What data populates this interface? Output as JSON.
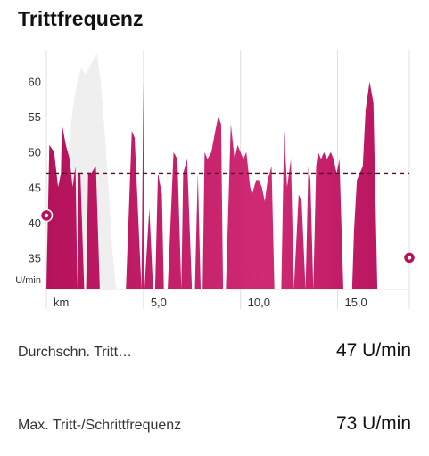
{
  "header": {
    "title": "Trittfrequenz"
  },
  "chart_data": {
    "type": "area",
    "ylabel": "U/min",
    "xlabel": "km",
    "yticks": [
      60,
      55,
      50,
      45,
      40,
      35
    ],
    "xticks": [
      {
        "value": 0,
        "label": "km"
      },
      {
        "value": 5,
        "label": "5,0"
      },
      {
        "value": 10,
        "label": "10,0"
      },
      {
        "value": 15,
        "label": "15,0"
      }
    ],
    "xlim": [
      0,
      18.7
    ],
    "ylim": [
      30.5,
      64.5
    ],
    "average": 47,
    "series": [
      {
        "x": [
          0,
          0.15,
          0.4,
          0.6,
          0.75,
          0.8,
          1.0,
          1.2,
          1.35,
          1.5,
          1.6,
          1.65,
          1.75,
          1.95,
          2.05,
          2.15,
          2.3,
          2.55,
          2.75,
          2.95,
          3.5,
          4.1,
          4.4,
          4.55,
          4.9,
          5.0,
          5.05,
          5.3,
          5.5,
          5.6,
          5.75,
          5.95,
          6.05,
          6.25,
          6.55,
          6.75,
          6.95,
          7.05,
          7.25,
          7.5,
          7.65,
          7.8,
          7.95,
          8.05,
          8.15,
          8.3,
          8.5,
          8.7,
          8.85,
          9.0,
          9.1,
          9.25,
          9.5,
          9.7,
          9.85,
          10.0,
          10.15,
          10.3,
          10.5,
          10.6,
          10.8,
          10.95,
          11.1,
          11.25,
          11.4,
          11.6,
          11.75,
          11.95,
          12.1,
          12.25,
          12.4,
          12.6,
          12.75,
          13.0,
          13.15,
          13.35,
          13.5,
          13.6,
          13.75,
          13.9,
          14.0,
          14.15,
          14.3,
          14.45,
          14.65,
          14.8,
          14.95,
          15.1,
          15.3,
          15.45,
          15.6,
          15.75,
          15.85,
          16.0,
          16.15,
          16.3,
          16.45,
          16.65,
          16.85,
          17.05,
          17.2,
          17.35,
          17.5,
          17.7,
          17.9,
          18.05,
          18.7
        ],
        "y": [
          30.5,
          51,
          50,
          45,
          47,
          54,
          51,
          49,
          45,
          48,
          30.5,
          47,
          47,
          30.5,
          30.5,
          47,
          47,
          48,
          30.5,
          30.5,
          30.5,
          30.5,
          53,
          52,
          30.5,
          60,
          30.5,
          42,
          30.5,
          30.5,
          47,
          44,
          30.5,
          30.5,
          50,
          49,
          30.5,
          47,
          49,
          30.5,
          30.5,
          47,
          30.5,
          30.5,
          50,
          49,
          50,
          53,
          55,
          54,
          30.5,
          30.5,
          54,
          49,
          51,
          50,
          49,
          50,
          45,
          44,
          46,
          46,
          45,
          43,
          46,
          48,
          30.5,
          30.5,
          30.5,
          53,
          45,
          49,
          30.5,
          44,
          43,
          30.5,
          48,
          46,
          30.5,
          48,
          50,
          49,
          50,
          49,
          50,
          49,
          47,
          49,
          30.5,
          30.5,
          30.5,
          30.5,
          39,
          46,
          47,
          48,
          56,
          60,
          57,
          30.5,
          30.5,
          30.5,
          30.5,
          30.5,
          30.5,
          30.5,
          30.5
        ]
      }
    ],
    "elevation": {
      "x": [
        1.0,
        1.2,
        1.4,
        1.6,
        1.8,
        2.0,
        2.2,
        2.4,
        2.6,
        2.8,
        3.0,
        3.2,
        3.4,
        3.6
      ],
      "y": [
        48,
        52,
        57,
        60,
        62,
        61,
        62,
        63,
        64,
        60,
        53,
        45,
        36,
        30.5
      ]
    }
  },
  "stats": [
    {
      "label": "Durchschn. Tritt…",
      "value": "47 U/min"
    },
    {
      "label": "Max. Tritt-/Schrittfrequenz",
      "value": "73 U/min"
    }
  ],
  "colors": {
    "primary": "#b5125c",
    "primary_light": "#cf2a73",
    "elevation": "#efefef",
    "grid": "#e0e0e0",
    "average_line": "#5e0a2f"
  }
}
